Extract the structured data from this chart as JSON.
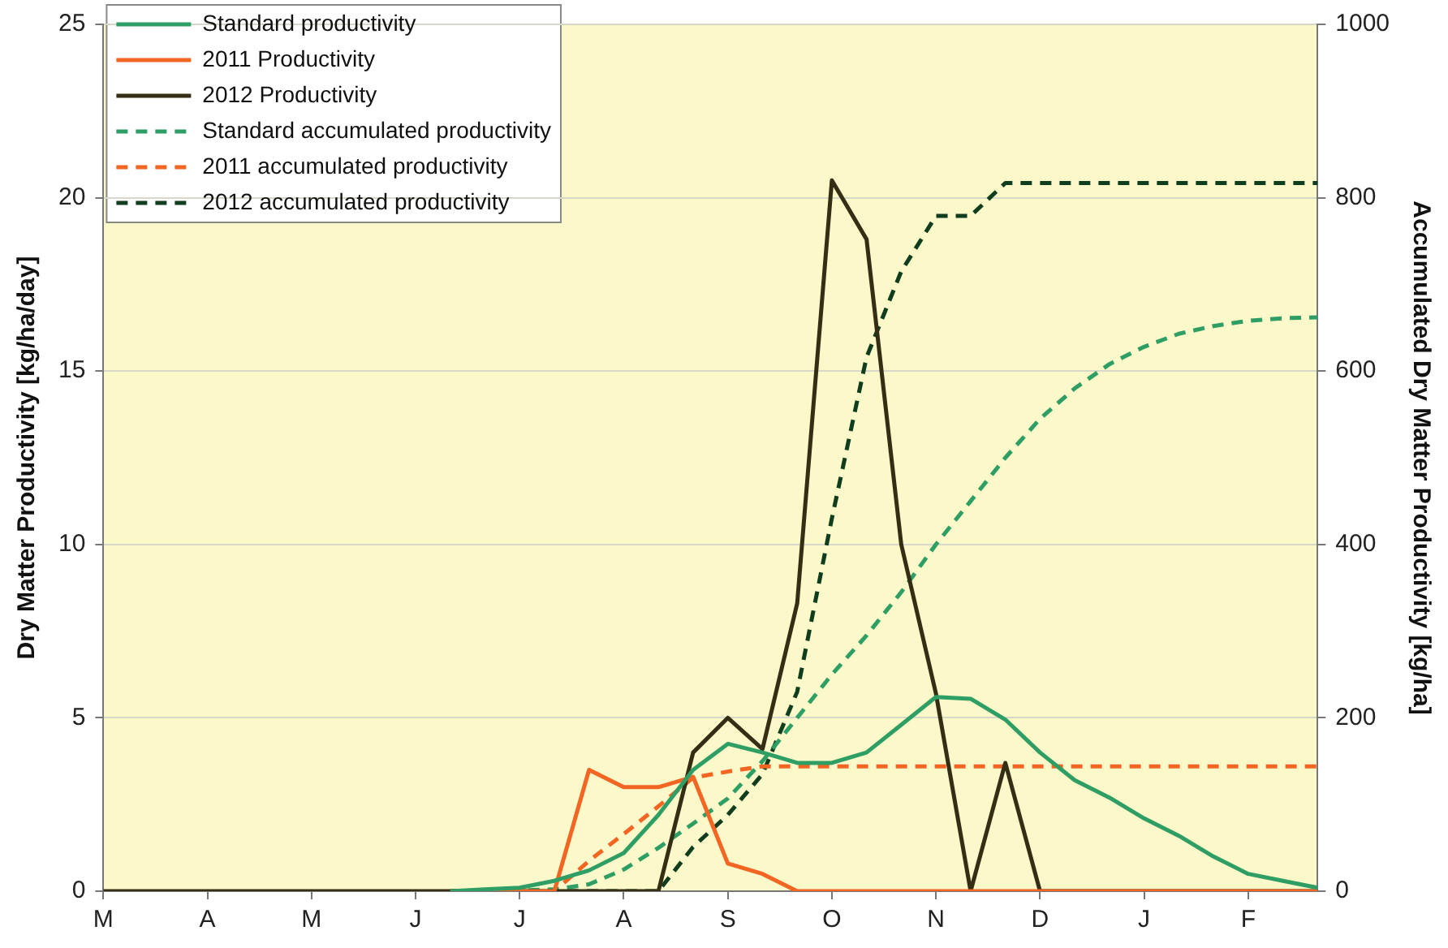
{
  "chart_data": {
    "type": "line",
    "ylabel": "Dry Matter Productivity [kg/ha/day]",
    "y2label": "Accumulated Dry Matter Productivity [kg/ha]",
    "categories": [
      "M",
      null,
      null,
      "A",
      null,
      null,
      "M",
      null,
      null,
      "J",
      null,
      null,
      "J",
      null,
      null,
      "A",
      null,
      null,
      "S",
      null,
      null,
      "O",
      null,
      null,
      "N",
      null,
      null,
      "D",
      null,
      null,
      "J",
      null,
      null,
      "F",
      null,
      null
    ],
    "ylim": [
      0,
      25
    ],
    "yticks": [
      0,
      5,
      10,
      15,
      20,
      25
    ],
    "y2lim": [
      0,
      1000
    ],
    "y2ticks": [
      0,
      200,
      400,
      600,
      800,
      1000
    ],
    "grid": "y",
    "legend": "top left",
    "marker": "none",
    "series": [
      {
        "name": "Standard productivity",
        "color": "#2e9e64",
        "line_style": "solid",
        "values": [
          null,
          null,
          null,
          null,
          null,
          null,
          null,
          null,
          null,
          null,
          0,
          0.05,
          0.1,
          0.3,
          0.6,
          1.1,
          2.2,
          3.5,
          4.25,
          4.0,
          3.7,
          3.7,
          4.0,
          4.8,
          5.6,
          5.55,
          4.95,
          4.0,
          3.2,
          2.7,
          2.1,
          1.6,
          1.0,
          0.5,
          0.3,
          0.1
        ]
      },
      {
        "name": "2011 Productivity",
        "color": "#f26522",
        "line_style": "solid",
        "values": [
          null,
          null,
          null,
          null,
          null,
          null,
          null,
          null,
          null,
          null,
          0,
          0,
          0,
          0,
          3.5,
          3.0,
          3.0,
          3.3,
          0.8,
          0.5,
          0,
          0,
          0,
          0,
          0,
          0,
          0,
          0,
          0,
          0,
          0,
          0,
          0,
          0,
          0,
          0
        ]
      },
      {
        "name": "2012 Productivity",
        "color": "#332e14",
        "line_style": "solid",
        "values": [
          0,
          0,
          0,
          0,
          0,
          0,
          0,
          0,
          0,
          0,
          0,
          0,
          0,
          0,
          0,
          0,
          0,
          4.0,
          5.0,
          4.1,
          8.3,
          20.5,
          18.8,
          10.0,
          5.7,
          0,
          3.7,
          0,
          0,
          0,
          0,
          0,
          0,
          0,
          0,
          0
        ]
      },
      {
        "name": "Standard accumulated productivity",
        "color": "#2e9e64",
        "line_style": "dashed",
        "axis": "y2",
        "values": [
          null,
          null,
          null,
          null,
          null,
          null,
          null,
          null,
          null,
          null,
          0,
          0,
          1,
          2,
          8,
          25,
          50,
          78,
          107,
          150,
          200,
          250,
          295,
          345,
          400,
          450,
          500,
          545,
          580,
          608,
          628,
          643,
          652,
          658,
          661,
          662
        ]
      },
      {
        "name": "2011 accumulated productivity",
        "color": "#f26522",
        "line_style": "dashed",
        "axis": "y2",
        "values": [
          null,
          null,
          null,
          null,
          null,
          null,
          null,
          null,
          null,
          null,
          0,
          0,
          0,
          0,
          35,
          66,
          98,
          131,
          138,
          144,
          144,
          144,
          144,
          144,
          144,
          144,
          144,
          144,
          144,
          144,
          144,
          144,
          144,
          144,
          144,
          144
        ]
      },
      {
        "name": "2012 accumulated productivity",
        "color": "#0f3d1e",
        "line_style": "dashed",
        "axis": "y2",
        "values": [
          null,
          null,
          null,
          null,
          null,
          null,
          null,
          null,
          null,
          null,
          0,
          0,
          0,
          0,
          0,
          0,
          0,
          51,
          88,
          135,
          230,
          430,
          616,
          715,
          779,
          779,
          817,
          817,
          817,
          817,
          817,
          817,
          817,
          817,
          817,
          817
        ]
      }
    ]
  }
}
